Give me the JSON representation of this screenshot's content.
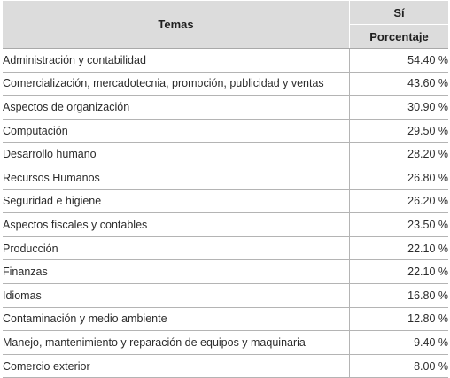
{
  "table": {
    "header": {
      "topics": "Temas",
      "group": "Sí",
      "percent": "Porcentaje"
    },
    "rows": [
      {
        "topic": "Administración y contabilidad",
        "percent": "54.40 %"
      },
      {
        "topic": "Comercialización, mercadotecnia, promoción, publicidad y ventas",
        "percent": "43.60 %"
      },
      {
        "topic": "Aspectos de organización",
        "percent": "30.90 %"
      },
      {
        "topic": "Computación",
        "percent": "29.50 %"
      },
      {
        "topic": "Desarrollo humano",
        "percent": "28.20 %"
      },
      {
        "topic": "Recursos Humanos",
        "percent": "26.80 %"
      },
      {
        "topic": "Seguridad e higiene",
        "percent": "26.20 %"
      },
      {
        "topic": "Aspectos fiscales y contables",
        "percent": "23.50 %"
      },
      {
        "topic": "Producción",
        "percent": "22.10 %"
      },
      {
        "topic": "Finanzas",
        "percent": "22.10 %"
      },
      {
        "topic": "Idiomas",
        "percent": "16.80 %"
      },
      {
        "topic": "Contaminación y medio ambiente",
        "percent": "12.80 %"
      },
      {
        "topic": "Manejo, mantenimiento y reparación de equipos y maquinaria",
        "percent": "9.40 %"
      },
      {
        "topic": "Comercio exterior",
        "percent": "8.00 %"
      }
    ]
  }
}
